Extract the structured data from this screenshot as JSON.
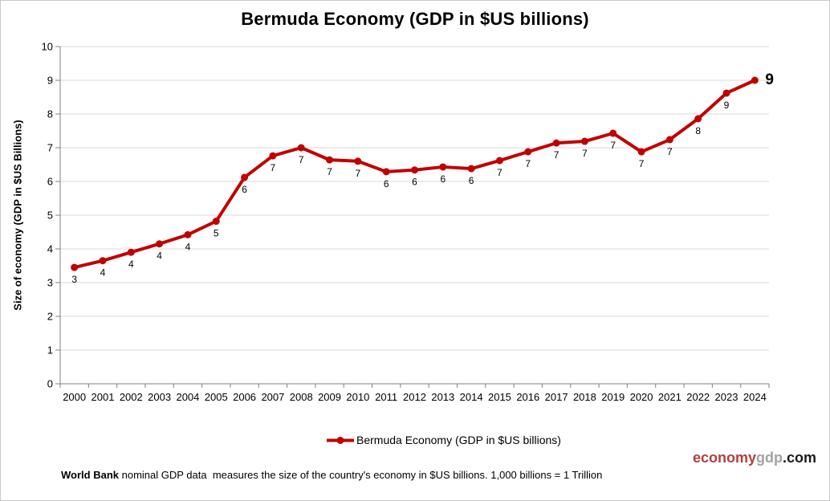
{
  "title": "Bermuda Economy (GDP in $US billions)",
  "chart_data": {
    "type": "line",
    "title": "Bermuda Economy (GDP in $US billions)",
    "x": [
      "2000",
      "2001",
      "2002",
      "2003",
      "2004",
      "2005",
      "2006",
      "2007",
      "2008",
      "2009",
      "2010",
      "2011",
      "2012",
      "2013",
      "2014",
      "2015",
      "2016",
      "2017",
      "2018",
      "2019",
      "2020",
      "2021",
      "2022",
      "2023",
      "2024"
    ],
    "series": [
      {
        "name": "Bermuda Economy (GDP in $US billions)",
        "values": [
          3.45,
          3.65,
          3.9,
          4.15,
          4.42,
          4.82,
          6.12,
          6.76,
          7.0,
          6.64,
          6.6,
          6.29,
          6.34,
          6.43,
          6.38,
          6.62,
          6.88,
          7.14,
          7.19,
          7.43,
          6.88,
          7.24,
          7.86,
          8.62,
          9.0
        ],
        "point_labels": [
          "3",
          "4",
          "4",
          "4",
          "4",
          "5",
          "6",
          "7",
          "7",
          "7",
          "7",
          "6",
          "6",
          "6",
          "6",
          "7",
          "7",
          "7",
          "7",
          "7",
          "7",
          "7",
          "8",
          "9",
          "9"
        ]
      }
    ],
    "xlabel": "",
    "ylabel": "Size of economy (GDP in $US Billions)",
    "ylim": [
      0,
      10
    ],
    "ytick_step": 1,
    "grid": true,
    "legend_position": "bottom-center",
    "line_color": "#c00000",
    "gridline_color": "#d9d9d9",
    "axis_color": "#808080",
    "tick_label_color": "#000000",
    "data_label_color": "#000000"
  },
  "legend": {
    "label": "Bermuda Economy (GDP in $US billions)"
  },
  "footnote": {
    "lead": "World Bank",
    "rest": " nominal GDP data  measures the size of the country's economy in $US billions. 1,000 billions = 1 Trillion"
  },
  "brand": {
    "part1": "economy",
    "part1_color": "#b0413e",
    "part2": "gdp",
    "part2_color": "#a3a3a3",
    "part3": ".com",
    "part3_color": "#1a1a1a"
  }
}
